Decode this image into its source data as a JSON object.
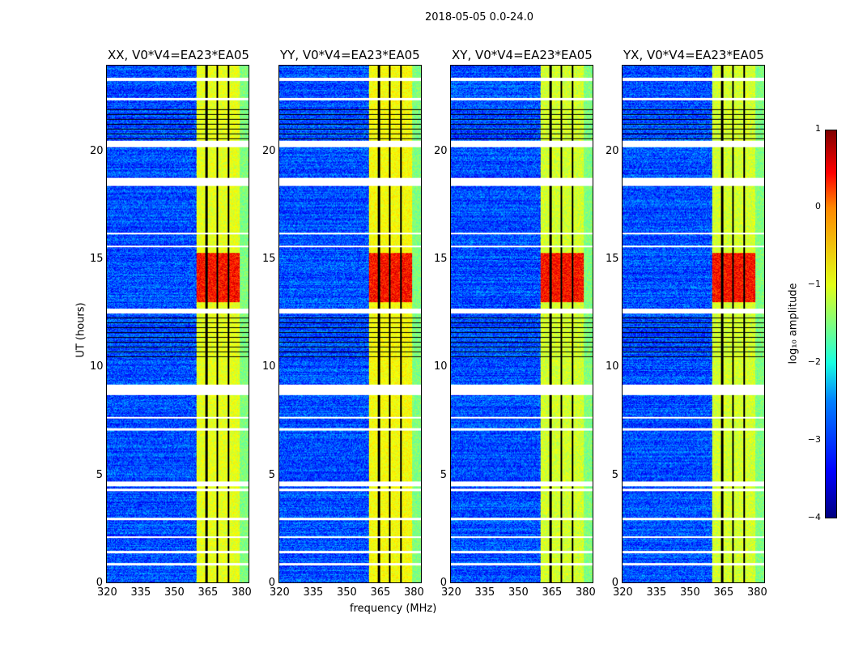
{
  "suptitle": "2018-05-05 0.0-24.0",
  "chart_data": {
    "type": "heatmap",
    "title": "2018-05-05 0.0-24.0",
    "xlabel": "frequency (MHz)",
    "ylabel": "UT (hours)",
    "xlim": [
      320,
      384
    ],
    "ylim": [
      0,
      24
    ],
    "xticks": [
      "320",
      "335",
      "350",
      "365",
      "380"
    ],
    "xtick_values": [
      320,
      335,
      350,
      365,
      380
    ],
    "yticks": [
      "0",
      "5",
      "10",
      "15",
      "20"
    ],
    "ytick_values": [
      0,
      5,
      10,
      15,
      20
    ],
    "panels": [
      {
        "title": "XX, V0*V4=EA23*EA05",
        "band_level": -1.0
      },
      {
        "title": "YY, V0*V4=EA23*EA05",
        "band_level": -0.9
      },
      {
        "title": "XY, V0*V4=EA23*EA05",
        "band_level": -1.1
      },
      {
        "title": "YX, V0*V4=EA23*EA05",
        "band_level": -1.1
      }
    ],
    "background_level": -3.0,
    "rfi_band_mhz": [
      360.4,
      380
    ],
    "rfi_channel_gaps_mhz": [
      365,
      370,
      375
    ],
    "strong_period_hours": [
      13.0,
      15.3
    ],
    "strong_level": 0.3,
    "flagged_hours": [
      [
        23.3,
        23.45
      ],
      [
        22.4,
        22.5
      ],
      [
        20.2,
        20.5
      ],
      [
        18.4,
        18.8
      ],
      [
        16.15,
        16.25
      ],
      [
        15.55,
        15.65
      ],
      [
        12.5,
        12.7
      ],
      [
        8.7,
        9.2
      ],
      [
        7.6,
        7.7
      ],
      [
        7.05,
        7.15
      ],
      [
        4.45,
        4.7
      ],
      [
        4.25,
        4.35
      ],
      [
        2.9,
        3.0
      ],
      [
        2.05,
        2.15
      ],
      [
        1.35,
        1.45
      ],
      [
        0.8,
        0.9
      ]
    ],
    "colorbar": {
      "label": "log₁₀ amplitude",
      "range": [
        -4,
        1
      ],
      "ticks": [
        "1",
        "0",
        "−1",
        "−2",
        "−3",
        "−4"
      ],
      "tick_values": [
        1,
        0,
        -1,
        -2,
        -3,
        -4
      ]
    }
  }
}
